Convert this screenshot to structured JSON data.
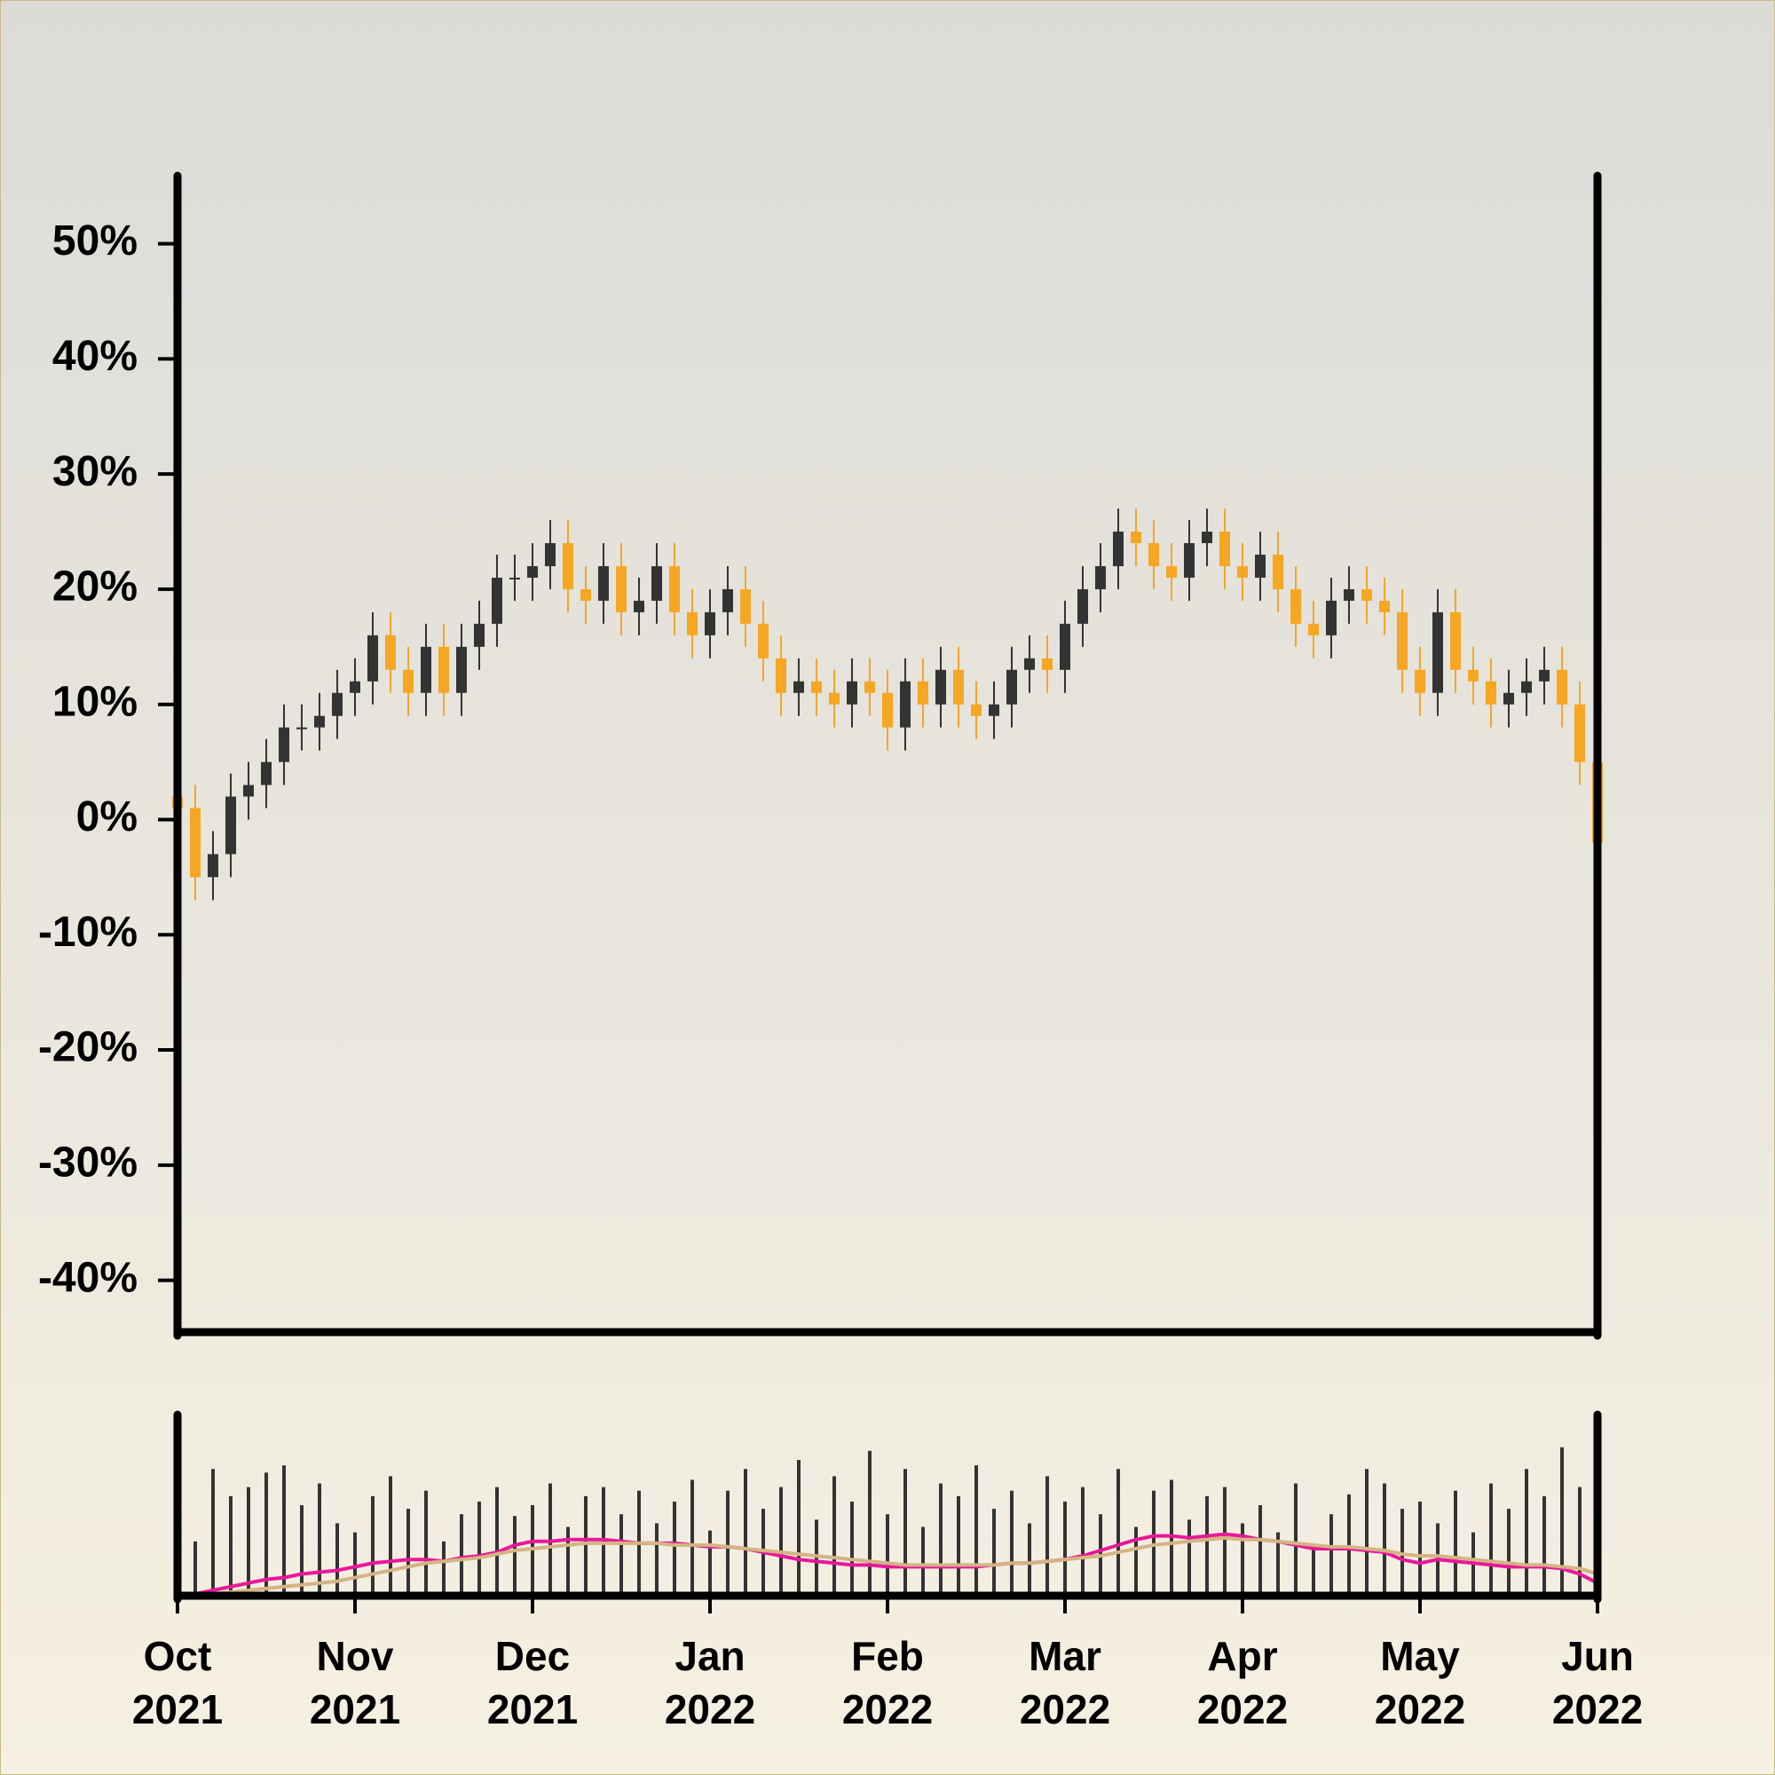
{
  "chart_data": [
    {
      "type": "candlestick",
      "categories": [
        "Oct 2021",
        null,
        null,
        null,
        null,
        null,
        null,
        null,
        null,
        null,
        "Nov 2021",
        null,
        null,
        null,
        null,
        null,
        null,
        null,
        null,
        null,
        "Dec 2021",
        null,
        null,
        null,
        null,
        null,
        null,
        null,
        null,
        null,
        "Jan 2022",
        null,
        null,
        null,
        null,
        null,
        null,
        null,
        null,
        null,
        "Feb 2022",
        null,
        null,
        null,
        null,
        null,
        null,
        null,
        null,
        null,
        "Mar 2022",
        null,
        null,
        null,
        null,
        null,
        null,
        null,
        null,
        null,
        "Apr 2022",
        null,
        null,
        null,
        null,
        null,
        null,
        null,
        null,
        null,
        "May 2022",
        null,
        null,
        null,
        null,
        null,
        null,
        null,
        null,
        null,
        "Jun 2022"
      ],
      "open": [
        2,
        1,
        -5,
        -3,
        2,
        3,
        5,
        8,
        8,
        9,
        11,
        12,
        16,
        13,
        11,
        15,
        11,
        15,
        17,
        21,
        21,
        22,
        24,
        20,
        19,
        22,
        18,
        19,
        22,
        18,
        16,
        18,
        20,
        17,
        14,
        11,
        12,
        11,
        10,
        12,
        11,
        8,
        12,
        10,
        13,
        10,
        9,
        10,
        13,
        14,
        13,
        17,
        20,
        22,
        25,
        24,
        22,
        21,
        24,
        25,
        22,
        21,
        23,
        20,
        17,
        16,
        19,
        20,
        19,
        18,
        13,
        11,
        18,
        13,
        12,
        10,
        11,
        12,
        13,
        10,
        5
      ],
      "high": [
        4,
        3,
        -1,
        4,
        5,
        7,
        10,
        10,
        11,
        13,
        14,
        18,
        18,
        15,
        17,
        17,
        17,
        19,
        23,
        23,
        24,
        26,
        26,
        22,
        24,
        24,
        21,
        24,
        24,
        20,
        20,
        22,
        22,
        19,
        16,
        14,
        14,
        13,
        14,
        14,
        13,
        14,
        14,
        15,
        15,
        12,
        12,
        15,
        16,
        16,
        19,
        22,
        24,
        27,
        27,
        26,
        24,
        26,
        27,
        27,
        24,
        25,
        25,
        22,
        19,
        21,
        22,
        22,
        21,
        20,
        15,
        20,
        20,
        15,
        14,
        13,
        14,
        15,
        15,
        12,
        7
      ],
      "low": [
        -1,
        -7,
        -7,
        -5,
        0,
        1,
        3,
        6,
        6,
        7,
        9,
        10,
        11,
        9,
        9,
        9,
        9,
        13,
        15,
        19,
        19,
        20,
        18,
        17,
        17,
        16,
        16,
        17,
        16,
        14,
        14,
        16,
        15,
        12,
        9,
        9,
        9,
        8,
        8,
        9,
        6,
        6,
        8,
        8,
        8,
        7,
        7,
        8,
        11,
        11,
        11,
        15,
        18,
        20,
        22,
        20,
        19,
        19,
        22,
        20,
        19,
        19,
        18,
        15,
        14,
        14,
        17,
        17,
        16,
        11,
        9,
        9,
        11,
        10,
        8,
        8,
        9,
        10,
        8,
        3,
        -4
      ],
      "close": [
        1,
        -5,
        -3,
        2,
        3,
        5,
        8,
        8,
        9,
        11,
        12,
        16,
        13,
        11,
        15,
        11,
        15,
        17,
        21,
        21,
        22,
        24,
        20,
        19,
        22,
        18,
        19,
        22,
        18,
        16,
        18,
        20,
        17,
        14,
        11,
        12,
        11,
        10,
        12,
        11,
        8,
        12,
        10,
        13,
        10,
        9,
        10,
        13,
        14,
        13,
        17,
        20,
        22,
        25,
        24,
        22,
        21,
        24,
        25,
        22,
        21,
        23,
        20,
        17,
        16,
        19,
        20,
        19,
        18,
        13,
        11,
        18,
        13,
        12,
        10,
        11,
        12,
        13,
        10,
        5,
        -2
      ],
      "up_color": "#333333",
      "down_color": "#f5a623",
      "ylim": [
        -44.5,
        55.9
      ],
      "yticks": [
        {
          "value": 50,
          "label": "50%"
        },
        {
          "value": 40,
          "label": "40%"
        },
        {
          "value": 30,
          "label": "30%"
        },
        {
          "value": 20,
          "label": "20%"
        },
        {
          "value": 10,
          "label": "10%"
        },
        {
          "value": 0,
          "label": "0%"
        },
        {
          "value": -10,
          "label": "-10%"
        },
        {
          "value": -20,
          "label": "-20%"
        },
        {
          "value": -30,
          "label": "-30%"
        },
        {
          "value": -40,
          "label": "-40%"
        }
      ]
    },
    {
      "type": "bar",
      "values": [
        25,
        30,
        70,
        55,
        60,
        68,
        72,
        50,
        62,
        40,
        35,
        55,
        66,
        48,
        58,
        30,
        45,
        52,
        60,
        44,
        50,
        62,
        38,
        55,
        60,
        45,
        58,
        40,
        52,
        64,
        36,
        58,
        70,
        48,
        60,
        75,
        42,
        66,
        52,
        80,
        45,
        70,
        38,
        62,
        55,
        72,
        48,
        58,
        40,
        66,
        52,
        60,
        45,
        70,
        38,
        58,
        64,
        42,
        55,
        60,
        40,
        50,
        35,
        62,
        28,
        45,
        56,
        70,
        62,
        48,
        52,
        40,
        58,
        35,
        62,
        48,
        70,
        55,
        82,
        60,
        30
      ],
      "color": "#333333",
      "ylim": [
        0,
        100
      ],
      "lines": [
        {
          "color": "#e8189a",
          "values": [
            0,
            1,
            3,
            5,
            7,
            9,
            10,
            12,
            13,
            14,
            16,
            18,
            19,
            20,
            20,
            19,
            21,
            22,
            24,
            28,
            30,
            30,
            31,
            31,
            31,
            30,
            29,
            29,
            29,
            28,
            27,
            27,
            26,
            24,
            22,
            20,
            19,
            18,
            17,
            17,
            16,
            16,
            16,
            16,
            16,
            16,
            17,
            18,
            18,
            19,
            20,
            22,
            25,
            28,
            31,
            33,
            33,
            32,
            33,
            34,
            33,
            31,
            30,
            28,
            26,
            26,
            26,
            25,
            24,
            20,
            18,
            20,
            19,
            18,
            17,
            16,
            16,
            16,
            15,
            12,
            7
          ]
        },
        {
          "color": "#d4b483",
          "values": [
            0,
            0,
            1,
            2,
            3,
            4,
            5,
            6,
            7,
            8,
            10,
            12,
            14,
            16,
            18,
            19,
            20,
            21,
            23,
            25,
            26,
            27,
            28,
            29,
            29,
            29,
            29,
            29,
            28,
            28,
            28,
            27,
            26,
            25,
            24,
            23,
            22,
            21,
            20,
            19,
            18,
            17,
            17,
            17,
            17,
            17,
            17,
            18,
            18,
            19,
            20,
            21,
            22,
            24,
            26,
            28,
            29,
            30,
            31,
            32,
            31,
            31,
            30,
            29,
            28,
            27,
            27,
            26,
            25,
            23,
            22,
            22,
            21,
            20,
            19,
            18,
            17,
            17,
            16,
            15,
            12
          ]
        }
      ]
    }
  ]
}
